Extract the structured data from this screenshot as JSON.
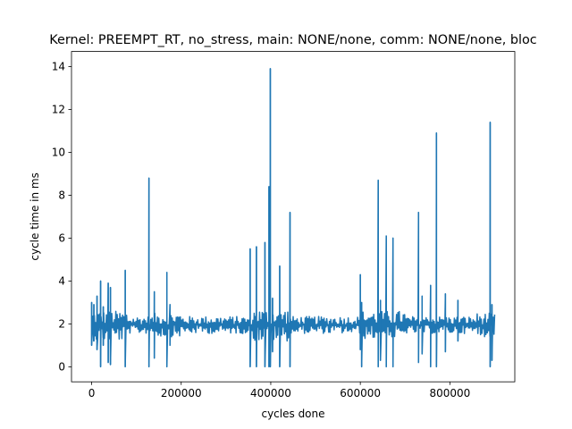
{
  "chart_data": {
    "type": "line",
    "title": "Kernel: PREEMPT_RT, no_stress, main: NONE/none, comm: NONE/none, bloc",
    "xlabel": "cycles done",
    "ylabel": "cycle time in ms",
    "xlim": [
      -45000,
      945000
    ],
    "ylim": [
      -0.7,
      14.7
    ],
    "xticks": [
      0,
      200000,
      400000,
      600000,
      800000
    ],
    "yticks": [
      0,
      2,
      4,
      6,
      8,
      10,
      12,
      14
    ],
    "grid": false,
    "line_color": "#1f77b4",
    "noise": {
      "x_start": 0,
      "x_end": 900000,
      "baseline_ms": 1.95,
      "typical_range_ms": [
        1.55,
        2.35
      ],
      "bursts": [
        {
          "x_from": 0,
          "x_to": 80000,
          "range_ms": [
            1.2,
            2.6
          ]
        },
        {
          "x_from": 140000,
          "x_to": 200000,
          "range_ms": [
            1.4,
            2.5
          ]
        },
        {
          "x_from": 360000,
          "x_to": 440000,
          "range_ms": [
            1.2,
            2.7
          ]
        },
        {
          "x_from": 600000,
          "x_to": 700000,
          "range_ms": [
            1.3,
            2.6
          ]
        },
        {
          "x_from": 860000,
          "x_to": 900000,
          "range_ms": [
            1.4,
            2.5
          ]
        }
      ]
    },
    "spikes": [
      {
        "x": 0,
        "high": 3.0,
        "low": 1.0
      },
      {
        "x": 5000,
        "high": 2.9,
        "low": 1.2
      },
      {
        "x": 12000,
        "high": 3.3,
        "low": 0.8
      },
      {
        "x": 20000,
        "high": 4.0,
        "low": 0.0
      },
      {
        "x": 26000,
        "high": 2.8,
        "low": 1.0
      },
      {
        "x": 37000,
        "high": 3.9,
        "low": 0.2
      },
      {
        "x": 42000,
        "high": 3.7,
        "low": 0.1
      },
      {
        "x": 75000,
        "high": 4.5,
        "low": 0.0
      },
      {
        "x": 128000,
        "high": 8.8,
        "low": 0.0
      },
      {
        "x": 140000,
        "high": 3.5,
        "low": 0.4
      },
      {
        "x": 168000,
        "high": 4.4,
        "low": 0.0
      },
      {
        "x": 175000,
        "high": 2.9,
        "low": 1.0
      },
      {
        "x": 354000,
        "high": 5.5,
        "low": 0.0
      },
      {
        "x": 368000,
        "high": 5.6,
        "low": 0.0
      },
      {
        "x": 387000,
        "high": 5.8,
        "low": 0.0
      },
      {
        "x": 396000,
        "high": 8.4,
        "low": 0.0
      },
      {
        "x": 399000,
        "high": 13.9,
        "low": 0.0
      },
      {
        "x": 404000,
        "high": 3.2,
        "low": 0.7
      },
      {
        "x": 420000,
        "high": 4.7,
        "low": 0.0
      },
      {
        "x": 443000,
        "high": 7.2,
        "low": 0.0
      },
      {
        "x": 600000,
        "high": 4.3,
        "low": 0.8
      },
      {
        "x": 603000,
        "high": 3.0,
        "low": 0.0
      },
      {
        "x": 640000,
        "high": 8.7,
        "low": 0.0
      },
      {
        "x": 645000,
        "high": 3.1,
        "low": 0.3
      },
      {
        "x": 658000,
        "high": 6.1,
        "low": 0.0
      },
      {
        "x": 673000,
        "high": 6.0,
        "low": 0.0
      },
      {
        "x": 730000,
        "high": 7.2,
        "low": 0.2
      },
      {
        "x": 738000,
        "high": 3.3,
        "low": 0.6
      },
      {
        "x": 757000,
        "high": 3.8,
        "low": 0.0
      },
      {
        "x": 770000,
        "high": 10.9,
        "low": 0.0
      },
      {
        "x": 790000,
        "high": 3.4,
        "low": 0.7
      },
      {
        "x": 818000,
        "high": 3.1,
        "low": 1.2
      },
      {
        "x": 890000,
        "high": 11.4,
        "low": 0.0
      },
      {
        "x": 894000,
        "high": 2.9,
        "low": 0.3
      }
    ]
  }
}
